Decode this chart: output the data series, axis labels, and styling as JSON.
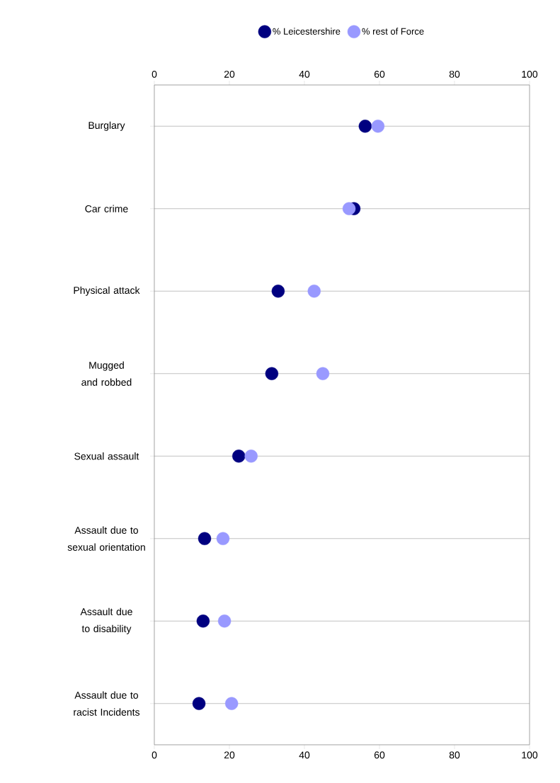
{
  "chart_data": {
    "type": "scatter",
    "orientation": "horizontal",
    "categories": [
      "Burglary",
      "Car crime",
      "Physical attack",
      "Mugged and robbed",
      "Sexual assault",
      "Assault due to sexual orientation",
      "Assault due to disability",
      "Assault due to racist Incidents"
    ],
    "series": [
      {
        "name": "% Leicestershire",
        "color": "#000080",
        "values": [
          56.2,
          53.2,
          33.0,
          31.3,
          22.5,
          13.4,
          13.0,
          11.9
        ]
      },
      {
        "name": "% rest of Force",
        "color": "#9999ff",
        "values": [
          59.6,
          51.9,
          42.6,
          44.9,
          25.8,
          18.3,
          18.7,
          20.6
        ]
      }
    ],
    "xlim": [
      0,
      100
    ],
    "xticks": [
      0,
      20,
      40,
      60,
      80,
      100
    ],
    "x2lim": [
      0,
      100
    ],
    "x2ticks": [
      0,
      20,
      40,
      60,
      80,
      100
    ],
    "grid": "y",
    "legend": "top",
    "marker": "circle"
  }
}
